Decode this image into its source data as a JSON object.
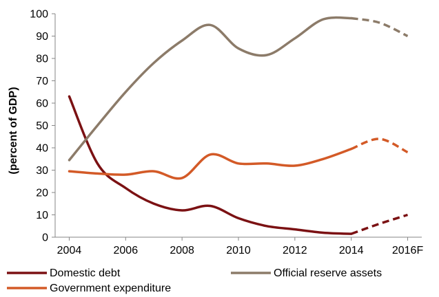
{
  "chart_data": {
    "type": "line",
    "title": "",
    "xlabel": "",
    "ylabel": "(percent of GDP)",
    "x": [
      2004,
      2005,
      2006,
      2007,
      2008,
      2009,
      2010,
      2011,
      2012,
      2013,
      2014,
      2015,
      2016
    ],
    "x_tick_values": [
      2004,
      2006,
      2008,
      2010,
      2012,
      2014,
      2016
    ],
    "x_tick_labels": [
      "2004",
      "2006",
      "2008",
      "2010",
      "2012",
      "2014",
      "2016F"
    ],
    "xlim": [
      2003.5,
      2016.5
    ],
    "ylim": [
      0,
      100
    ],
    "y_ticks": [
      0,
      10,
      20,
      30,
      40,
      50,
      60,
      70,
      80,
      90,
      100
    ],
    "forecast_from": 2014,
    "grid": false,
    "legend_position": "bottom",
    "series": [
      {
        "name": "Domestic debt",
        "color": "#7b1113",
        "values": [
          63,
          33,
          22,
          15,
          12,
          14,
          8.5,
          5,
          3.5,
          2,
          1.5,
          6,
          10
        ]
      },
      {
        "name": "Government expenditure",
        "color": "#d35a27",
        "values": [
          29.5,
          28.5,
          28,
          29.5,
          26.5,
          37,
          33,
          33,
          32,
          35,
          39.5,
          44,
          38
        ]
      },
      {
        "name": "Official reserve assets",
        "color": "#8c7b69",
        "values": [
          34.5,
          50,
          65,
          78,
          88,
          95,
          84.5,
          81.5,
          89,
          97.5,
          98,
          96,
          90
        ]
      }
    ]
  }
}
